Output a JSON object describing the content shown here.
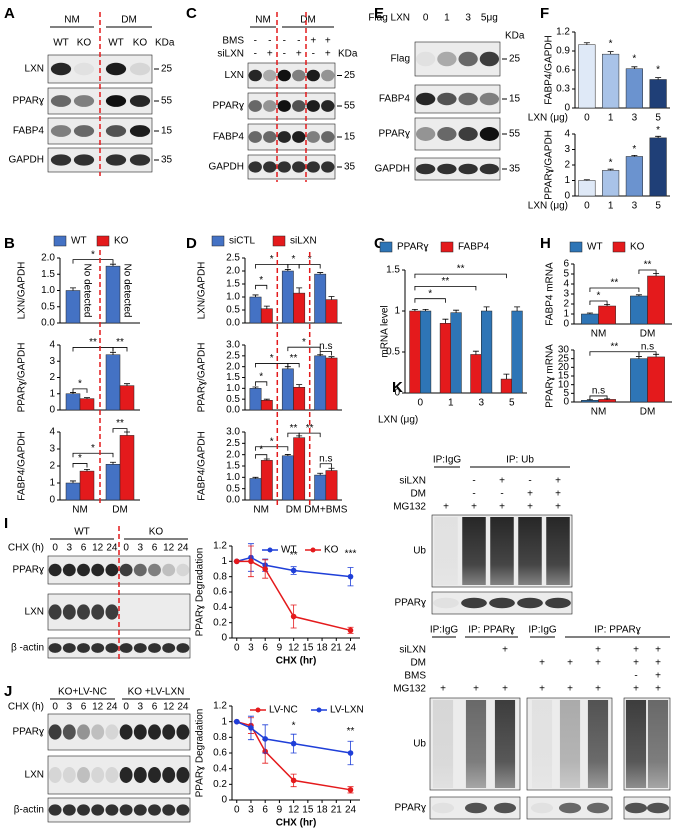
{
  "panel_letters": [
    "A",
    "B",
    "C",
    "D",
    "E",
    "F",
    "G",
    "H",
    "I",
    "J",
    "K"
  ],
  "blots": [
    {
      "groups": [
        "NM",
        "DM"
      ],
      "lanes": [
        "WT",
        "KO",
        "WT",
        "KO"
      ],
      "unit": "KDa",
      "rows": [
        {
          "label": "LXN",
          "marker": "25"
        },
        {
          "label": "PPARɣ",
          "marker": "55"
        },
        {
          "label": "FABP4",
          "marker": "15"
        },
        {
          "label": "GAPDH",
          "marker": "35"
        }
      ]
    },
    {
      "groups": [
        "NM",
        "DM"
      ],
      "sign_rows": [
        {
          "label": "BMS",
          "signs": [
            "-",
            "-",
            "-",
            "-",
            "+",
            "+"
          ]
        },
        {
          "label": "siLXN",
          "signs": [
            "-",
            "+",
            "-",
            "+",
            "-",
            "+"
          ]
        }
      ],
      "unit": "KDa",
      "rows": [
        {
          "label": "LXN",
          "marker": "25"
        },
        {
          "label": "PPARɣ",
          "marker": "55"
        },
        {
          "label": "FABP4",
          "marker": "15"
        },
        {
          "label": "GAPDH",
          "marker": "35"
        }
      ]
    },
    {
      "condition": "Flag LXN",
      "lanes": [
        "0",
        "1",
        "3",
        "5μg"
      ],
      "unit": "KDa",
      "rows": [
        {
          "label": "Flag",
          "marker": "25"
        },
        {
          "label": "FABP4",
          "marker": "15"
        },
        {
          "label": "PPARɣ",
          "marker": "55"
        },
        {
          "label": "GAPDH",
          "marker": "35"
        }
      ]
    },
    {
      "groups": [
        "WT",
        "KO"
      ],
      "condition": "CHX (h)",
      "lanes": [
        "0",
        "3",
        "6",
        "12",
        "24",
        "0",
        "3",
        "6",
        "12",
        "24"
      ],
      "rows": [
        {
          "label": "PPARɣ"
        },
        {
          "label": "LXN"
        },
        {
          "label": "β -actin"
        }
      ]
    },
    {
      "groups": [
        "KO+LV-NC",
        "KO +LV-LXN"
      ],
      "condition": "CHX (h)",
      "lanes": [
        "0",
        "3",
        "6",
        "12",
        "24",
        "0",
        "3",
        "6",
        "12",
        "24"
      ],
      "rows": [
        {
          "label": "PPARɣ"
        },
        {
          "label": "LXN"
        },
        {
          "label": "β-actin"
        }
      ]
    },
    {
      "groups": [
        "IP:IgG",
        "IP:  Ub"
      ],
      "sign_rows": [
        {
          "label": "siLXN",
          "signs": [
            null,
            "-",
            "+",
            "-",
            "+"
          ]
        },
        {
          "label": "DM",
          "signs": [
            null,
            "-",
            "-",
            "+",
            "+"
          ]
        },
        {
          "label": "MG132",
          "signs": [
            "+",
            "+",
            "+",
            "+",
            "+"
          ]
        }
      ],
      "rows": [
        {
          "label": "Ub"
        },
        {
          "label": "PPARɣ"
        }
      ]
    },
    {
      "groups": [
        "IP:IgG",
        "IP:  PPARɣ",
        "IP:IgG",
        "IP:  PPARɣ"
      ],
      "sign_rows": [
        {
          "label": "siLXN",
          "signs": [
            null,
            null,
            "+",
            null,
            null,
            "+",
            "+",
            "+"
          ]
        },
        {
          "label": "DM",
          "signs": [
            null,
            null,
            null,
            "+",
            "+",
            "+",
            "+",
            "+"
          ]
        },
        {
          "label": "BMS",
          "signs": [
            null,
            null,
            null,
            null,
            null,
            null,
            "-",
            "+"
          ]
        },
        {
          "label": "MG132",
          "signs": [
            "+",
            "+",
            "+",
            "+",
            "+",
            "+",
            "+",
            "+"
          ]
        }
      ],
      "rows": [
        {
          "label": "Ub"
        },
        {
          "label": "PPARɣ"
        }
      ]
    }
  ],
  "chart_data": [
    {
      "type": "bar",
      "ylabel": "FABP4/GAPDH",
      "xlabel": "LXN (μg)",
      "categories": [
        "0",
        "1",
        "3",
        "5"
      ],
      "series": [
        {
          "values": [
            1.0,
            0.85,
            0.62,
            0.45
          ],
          "errors": [
            0.03,
            0.04,
            0.03,
            0.03
          ],
          "colors": [
            "#dfe9f7",
            "#a9c3e8",
            "#6b93cf",
            "#1f3f77"
          ]
        }
      ],
      "ylim": [
        0,
        1.2
      ],
      "yticks": [
        0,
        0.3,
        0.6,
        0.9,
        1.2
      ],
      "annotations": [
        "*",
        "*",
        "*"
      ]
    },
    {
      "type": "bar",
      "ylabel": "PPARɣ/GAPDH",
      "xlabel": "LXN (μg)",
      "categories": [
        "0",
        "1",
        "3",
        "5"
      ],
      "series": [
        {
          "values": [
            1.0,
            1.65,
            2.55,
            3.75
          ],
          "errors": [
            0.05,
            0.08,
            0.07,
            0.1
          ],
          "colors": [
            "#dfe9f7",
            "#a9c3e8",
            "#6b93cf",
            "#1f3f77"
          ]
        }
      ],
      "ylim": [
        0,
        4
      ],
      "yticks": [
        0,
        1,
        2,
        3,
        4
      ],
      "annotations": [
        "*",
        "*",
        "*"
      ]
    },
    {
      "type": "bar",
      "ylabel": "LXN/GAPDH",
      "categories": [
        null,
        null
      ],
      "series": [
        {
          "name": "WT",
          "color": "#4472c4",
          "values": [
            1.0,
            1.75
          ],
          "errors": [
            0.08,
            0.06
          ]
        },
        {
          "name": "KO",
          "color": "#e41a1c",
          "values": [
            null,
            null
          ]
        }
      ],
      "ylim": [
        0,
        2
      ],
      "yticks": [
        {
          "value": 0,
          "label": "0.0"
        },
        {
          "value": 0.5,
          "label": "0.5"
        },
        {
          "value": 1,
          "label": "1.0"
        },
        {
          "value": 1.5,
          "label": "1.5"
        },
        {
          "value": 2,
          "label": "2.0"
        }
      ],
      "annotations": [
        "*",
        "No detected",
        "No detected"
      ]
    },
    {
      "type": "bar",
      "ylabel": "PPARɣ/GAPDH",
      "categories": [
        null,
        null
      ],
      "series": [
        {
          "color": "#4472c4",
          "values": [
            1.0,
            3.4
          ],
          "errors": [
            0.08,
            0.15
          ]
        },
        {
          "color": "#e41a1c",
          "values": [
            0.7,
            1.5
          ],
          "errors": [
            0.06,
            0.12
          ]
        }
      ],
      "ylim": [
        0,
        4
      ],
      "yticks": [
        0,
        1,
        2,
        3,
        4
      ],
      "annotations": [
        "*",
        "**",
        "**"
      ]
    },
    {
      "type": "bar",
      "ylabel": "FABP4/GAPDH",
      "categories": [
        "NM",
        "DM"
      ],
      "series": [
        {
          "color": "#4472c4",
          "values": [
            1.0,
            2.1
          ],
          "errors": [
            0.12,
            0.12
          ]
        },
        {
          "color": "#e41a1c",
          "values": [
            1.7,
            3.8
          ],
          "errors": [
            0.1,
            0.2
          ]
        }
      ],
      "ylim": [
        0,
        4
      ],
      "yticks": [
        0,
        1,
        2,
        3,
        4
      ],
      "annotations": [
        "*",
        "*",
        "**"
      ]
    },
    {
      "type": "bar",
      "ylabel": "LXN/GAPDH",
      "categories": [
        null,
        null,
        null
      ],
      "series": [
        {
          "name": "siCTL",
          "color": "#4472c4",
          "values": [
            1.0,
            2.0,
            1.88
          ],
          "errors": [
            0.08,
            0.06,
            0.06
          ]
        },
        {
          "name": "siLXN",
          "color": "#e41a1c",
          "values": [
            0.55,
            1.15,
            0.9
          ],
          "errors": [
            0.1,
            0.2,
            0.12
          ]
        }
      ],
      "ylim": [
        0,
        2.5
      ],
      "yticks": [
        {
          "value": 0,
          "label": "0.0"
        },
        {
          "value": 0.5,
          "label": "0.5"
        },
        {
          "value": 1,
          "label": "1.0"
        },
        {
          "value": 1.5,
          "label": "1.5"
        },
        {
          "value": 2,
          "label": "2.0"
        },
        {
          "value": 2.5,
          "label": "2.5"
        }
      ],
      "annotations": [
        "*",
        "*",
        "*",
        "*"
      ]
    },
    {
      "type": "bar",
      "ylabel": "PPARɣ/GAPDH",
      "categories": [
        null,
        null,
        null
      ],
      "series": [
        {
          "color": "#4472c4",
          "values": [
            1.0,
            1.9,
            2.5
          ],
          "errors": [
            0.06,
            0.1,
            0.05
          ]
        },
        {
          "color": "#e41a1c",
          "values": [
            0.45,
            1.05,
            2.4
          ],
          "errors": [
            0.05,
            0.12,
            0.06
          ]
        }
      ],
      "ylim": [
        0,
        3
      ],
      "yticks": [
        {
          "value": 0,
          "label": "0.0"
        },
        {
          "value": 0.5,
          "label": "0.5"
        },
        {
          "value": 1,
          "label": "1.0"
        },
        {
          "value": 1.5,
          "label": "1.5"
        },
        {
          "value": 2,
          "label": "2.0"
        },
        {
          "value": 2.5,
          "label": "2.5"
        },
        {
          "value": 3,
          "label": "3.0"
        }
      ],
      "annotations": [
        "*",
        "*",
        "**",
        "*",
        "n.s"
      ]
    },
    {
      "type": "bar",
      "ylabel": "FABP4/GAPDH",
      "categories": [
        "NM",
        "DM",
        "DM+BMS"
      ],
      "series": [
        {
          "color": "#4472c4",
          "values": [
            0.95,
            1.95,
            1.1
          ],
          "errors": [
            0.05,
            0.06,
            0.08
          ]
        },
        {
          "color": "#e41a1c",
          "values": [
            1.75,
            2.75,
            1.3
          ],
          "errors": [
            0.06,
            0.08,
            0.1
          ]
        }
      ],
      "ylim": [
        0,
        3
      ],
      "yticks": [
        {
          "value": 0,
          "label": "0.0"
        },
        {
          "value": 0.5,
          "label": "0.5"
        },
        {
          "value": 1,
          "label": "1.0"
        },
        {
          "value": 1.5,
          "label": "1.5"
        },
        {
          "value": 2,
          "label": "2.0"
        },
        {
          "value": 2.5,
          "label": "2.5"
        },
        {
          "value": 3,
          "label": "3.0"
        }
      ],
      "annotations": [
        "*",
        "*",
        "**",
        "**",
        "n.s"
      ]
    },
    {
      "type": "bar",
      "ylabel": "mRNA level",
      "xlabel": "LXN (μg)",
      "categories": [
        "0",
        "1",
        "3",
        "5"
      ],
      "series": [
        {
          "name": "PPARɣ",
          "color": "#2e75b6",
          "values": [
            1.0,
            0.98,
            1.0,
            1.0
          ],
          "errors": [
            0.02,
            0.03,
            0.05,
            0.05
          ]
        },
        {
          "name": "FABP4",
          "color": "#e41a1c",
          "values": [
            1.0,
            0.85,
            0.47,
            0.17
          ],
          "errors": [
            0.02,
            0.05,
            0.04,
            0.06
          ]
        }
      ],
      "ylim": [
        0,
        1.5
      ],
      "yticks": [
        0,
        0.5,
        1,
        1.5
      ],
      "annotations": [
        "*",
        "**",
        "**"
      ]
    },
    {
      "type": "bar",
      "ylabel": "FABP4 mRNA",
      "categories": [
        "NM",
        "DM"
      ],
      "series": [
        {
          "name": "WT",
          "color": "#2e75b6",
          "values": [
            1.0,
            2.8
          ],
          "errors": [
            0.1,
            0.12
          ]
        },
        {
          "name": "KO",
          "color": "#e41a1c",
          "values": [
            1.8,
            4.8
          ],
          "errors": [
            0.15,
            0.25
          ]
        }
      ],
      "ylim": [
        0,
        6
      ],
      "yticks": [
        0,
        1,
        2,
        3,
        4,
        5,
        6
      ],
      "annotations": [
        "*",
        "**",
        "**"
      ]
    },
    {
      "type": "bar",
      "ylabel": "PPARɣ mRNA",
      "categories": [
        "NM",
        "DM"
      ],
      "series": [
        {
          "color": "#2e75b6",
          "values": [
            1.0,
            25
          ],
          "errors": [
            0.3,
            1.2
          ]
        },
        {
          "color": "#e41a1c",
          "values": [
            1.5,
            26
          ],
          "errors": [
            0.3,
            1.5
          ]
        }
      ],
      "ylim": [
        0,
        30
      ],
      "yticks": [
        0,
        5,
        10,
        15,
        20,
        25,
        30
      ],
      "annotations": [
        "n.s",
        "**",
        "n.s"
      ]
    },
    {
      "type": "line",
      "ylabel": "PPARɣ Degradation",
      "xlabel": "CHX (hr)",
      "x": [
        0,
        3,
        6,
        12,
        24
      ],
      "series": [
        {
          "name": "WT",
          "color": "#1f3fd8",
          "values": [
            1,
            1.05,
            0.95,
            0.88,
            0.8
          ],
          "errors": [
            0,
            0.18,
            0.08,
            0.05,
            0.12
          ]
        },
        {
          "name": "KO",
          "color": "#e41a1c",
          "values": [
            1,
            1.0,
            0.9,
            0.28,
            0.1
          ],
          "errors": [
            0,
            0.2,
            0.12,
            0.15,
            0.04
          ]
        }
      ],
      "xlim": [
        -1,
        26
      ],
      "xticks": [
        0,
        3,
        6,
        9,
        12,
        15,
        18,
        21,
        24
      ],
      "ylim": [
        0,
        1.2
      ],
      "yticks": [
        0,
        0.2,
        0.4,
        0.6,
        0.8,
        1,
        1.2
      ],
      "annotations": [
        "**",
        "***"
      ]
    },
    {
      "type": "line",
      "ylabel": "PPARɣ Degradation",
      "xlabel": "CHX (hr)",
      "x": [
        0,
        3,
        6,
        12,
        24
      ],
      "series": [
        {
          "name": "LV-NC",
          "color": "#e41a1c",
          "values": [
            1,
            0.95,
            0.62,
            0.25,
            0.13
          ],
          "errors": [
            0,
            0.1,
            0.15,
            0.08,
            0.04
          ]
        },
        {
          "name": "LV-LXN",
          "color": "#1f3fd8",
          "values": [
            1,
            0.92,
            0.78,
            0.72,
            0.6
          ],
          "errors": [
            0,
            0.15,
            0.18,
            0.12,
            0.15
          ]
        }
      ],
      "xlim": [
        -1,
        26
      ],
      "xticks": [
        0,
        3,
        6,
        9,
        12,
        15,
        18,
        21,
        24
      ],
      "ylim": [
        0,
        1.2
      ],
      "yticks": [
        0,
        0.2,
        0.4,
        0.6,
        0.8,
        1,
        1.2
      ],
      "annotations": [
        "*",
        "**"
      ]
    }
  ]
}
